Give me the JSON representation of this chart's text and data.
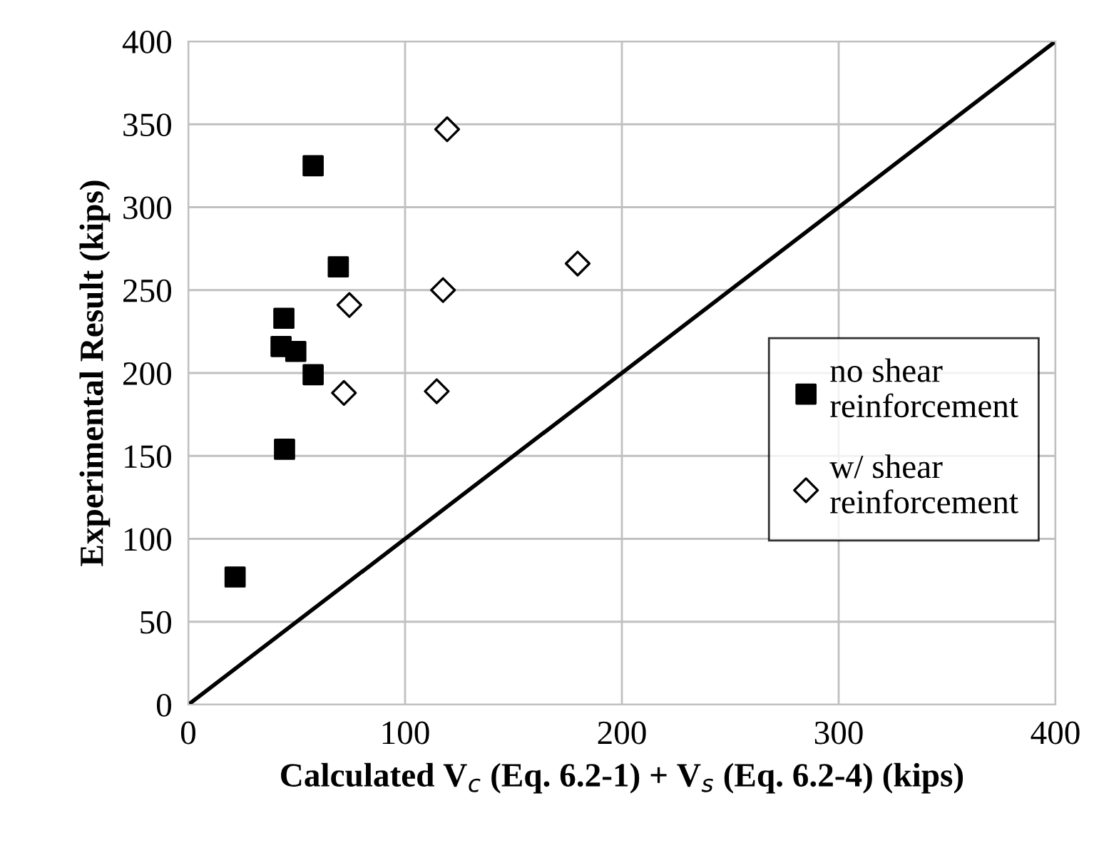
{
  "chart_data": {
    "type": "scatter",
    "xlabel": "Calculated V$_{c}$ (Eq. 6.2-1) + V$_{s}$ (Eq. 6.2-4) (kips)",
    "ylabel": "Experimental Result (kips)",
    "xlim": [
      0,
      400
    ],
    "ylim": [
      0,
      400
    ],
    "xticks": [
      0,
      100,
      200,
      300,
      400
    ],
    "yticks": [
      0,
      50,
      100,
      150,
      200,
      250,
      300,
      350,
      400
    ],
    "grid": true,
    "legend": "right",
    "series": [
      {
        "name": "no shear\nreinforcement",
        "color": "#000000",
        "marker": "square",
        "x": [
          21.6,
          57.6,
          69.2,
          44.1,
          42.8,
          49.6,
          57.6,
          44.4
        ],
        "values": [
          77,
          325,
          264,
          233,
          216,
          213,
          199,
          154
        ]
      },
      {
        "name": "w/ shear\nreinforcement",
        "color": "#000000",
        "marker": "diamond",
        "x": [
          119.4,
          179.6,
          74.3,
          117.5,
          71.8,
          114.6
        ],
        "values": [
          347,
          266,
          241,
          250,
          188,
          189
        ]
      },
      {
        "type": "line",
        "color": "#000000",
        "x": [
          0,
          400
        ],
        "values": [
          0,
          400
        ]
      }
    ]
  }
}
